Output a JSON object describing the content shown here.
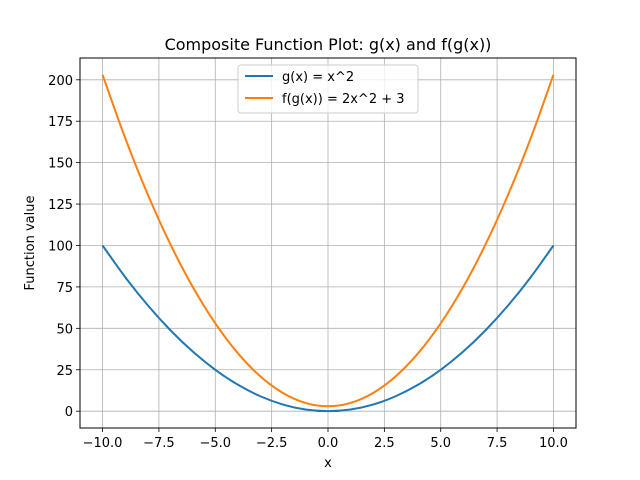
{
  "chart_data": {
    "type": "line",
    "title": "Composite Function Plot: g(x) and f(g(x))",
    "xlabel": "x",
    "ylabel": "Function value",
    "xlim": [
      -11,
      11
    ],
    "ylim": [
      -10.15,
      213.15
    ],
    "x_ticks": [
      -10,
      -7.5,
      -5,
      -2.5,
      0,
      2.5,
      5,
      7.5,
      10
    ],
    "x_tick_labels": [
      "−10.0",
      "−7.5",
      "−5.0",
      "−2.5",
      "0.0",
      "2.5",
      "5.0",
      "7.5",
      "10.0"
    ],
    "y_ticks": [
      0,
      25,
      50,
      75,
      100,
      125,
      150,
      175,
      200
    ],
    "y_tick_labels": [
      "0",
      "25",
      "50",
      "75",
      "100",
      "125",
      "150",
      "175",
      "200"
    ],
    "grid": true,
    "legend_position": "top-center",
    "x": [
      -10,
      -9,
      -8,
      -7,
      -6,
      -5,
      -4,
      -3,
      -2,
      -1,
      0,
      1,
      2,
      3,
      4,
      5,
      6,
      7,
      8,
      9,
      10
    ],
    "series": [
      {
        "name": "g(x) = x^2",
        "color": "#1f77b4",
        "values": [
          100,
          81,
          64,
          49,
          36,
          25,
          16,
          9,
          4,
          1,
          0,
          1,
          4,
          9,
          16,
          25,
          36,
          49,
          64,
          81,
          100
        ]
      },
      {
        "name": "f(g(x)) = 2x^2 + 3",
        "color": "#ff7f0e",
        "values": [
          203,
          165,
          131,
          101,
          75,
          53,
          35,
          21,
          11,
          5,
          3,
          5,
          11,
          21,
          35,
          53,
          75,
          101,
          131,
          165,
          203
        ]
      }
    ]
  }
}
